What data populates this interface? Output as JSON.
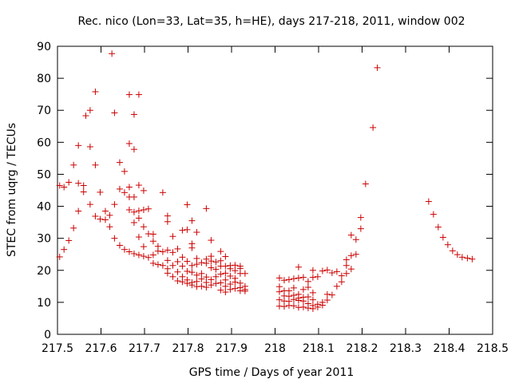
{
  "chart_data": {
    "type": "scatter",
    "title": "Rec. nico (Lon=33, Lat=35, h=HE), days 217-218, 2011, window 002",
    "xlabel": "GPS time / Days of year 2011",
    "ylabel": "STEC from uqrg / TECUs",
    "xlim": [
      217.5,
      218.5
    ],
    "ylim": [
      0,
      90
    ],
    "x_ticks": [
      "217.5",
      "217.6",
      "217.7",
      "217.8",
      "217.9",
      "218",
      "218.1",
      "218.2",
      "218.3",
      "218.4",
      "218.5"
    ],
    "y_ticks": [
      "0",
      "10",
      "20",
      "30",
      "40",
      "50",
      "60",
      "70",
      "80",
      "90"
    ],
    "grid": false,
    "marker": "+",
    "colors": {
      "marker": "#cc0000",
      "axis": "#000000",
      "background": "#ffffff"
    },
    "series": [
      {
        "points": [
          [
            217.505,
            24.2
          ],
          [
            217.505,
            46.5
          ],
          [
            217.515,
            26.5
          ],
          [
            217.515,
            46.0
          ],
          [
            217.526,
            29.3
          ],
          [
            217.526,
            47.5
          ],
          [
            217.537,
            33.2
          ],
          [
            217.537,
            52.9
          ],
          [
            217.548,
            38.5
          ],
          [
            217.548,
            47.2
          ],
          [
            217.548,
            59.0
          ],
          [
            217.56,
            44.5
          ],
          [
            217.56,
            46.5
          ],
          [
            217.565,
            68.3
          ],
          [
            217.575,
            40.6
          ],
          [
            217.575,
            58.6
          ],
          [
            217.575,
            70.0
          ],
          [
            217.587,
            36.9
          ],
          [
            217.587,
            52.9
          ],
          [
            217.587,
            75.8
          ],
          [
            217.598,
            36.0
          ],
          [
            217.598,
            44.4
          ],
          [
            217.61,
            35.8
          ],
          [
            217.61,
            38.5
          ],
          [
            217.62,
            33.6
          ],
          [
            217.62,
            37.2
          ],
          [
            217.625,
            87.7
          ],
          [
            217.631,
            30.0
          ],
          [
            217.631,
            40.6
          ],
          [
            217.631,
            69.2
          ],
          [
            217.643,
            27.8
          ],
          [
            217.643,
            45.4
          ],
          [
            217.643,
            53.7
          ],
          [
            217.654,
            26.5
          ],
          [
            217.654,
            44.3
          ],
          [
            217.654,
            50.9
          ],
          [
            217.665,
            25.8
          ],
          [
            217.665,
            38.9
          ],
          [
            217.665,
            42.9
          ],
          [
            217.665,
            46.0
          ],
          [
            217.665,
            59.6
          ],
          [
            217.665,
            74.9
          ],
          [
            217.676,
            25.2
          ],
          [
            217.676,
            34.9
          ],
          [
            217.676,
            38.2
          ],
          [
            217.676,
            42.9
          ],
          [
            217.676,
            57.8
          ],
          [
            217.676,
            68.7
          ],
          [
            217.687,
            24.8
          ],
          [
            217.687,
            30.4
          ],
          [
            217.687,
            36.3
          ],
          [
            217.687,
            38.6
          ],
          [
            217.687,
            46.6
          ],
          [
            217.687,
            74.9
          ],
          [
            217.698,
            24.4
          ],
          [
            217.698,
            27.4
          ],
          [
            217.698,
            33.6
          ],
          [
            217.698,
            38.9
          ],
          [
            217.698,
            44.9
          ],
          [
            217.709,
            24.0
          ],
          [
            217.709,
            31.4
          ],
          [
            217.709,
            39.2
          ],
          [
            217.72,
            22.2
          ],
          [
            217.72,
            24.8
          ],
          [
            217.72,
            29.1
          ],
          [
            217.72,
            31.3
          ],
          [
            217.731,
            21.8
          ],
          [
            217.731,
            26.0
          ],
          [
            217.731,
            27.5
          ],
          [
            217.742,
            21.5
          ],
          [
            217.742,
            25.8
          ],
          [
            217.742,
            44.3
          ],
          [
            217.753,
            19.1
          ],
          [
            217.753,
            20.5
          ],
          [
            217.753,
            23.1
          ],
          [
            217.753,
            26.3
          ],
          [
            217.753,
            35.2
          ],
          [
            217.753,
            37.0
          ],
          [
            217.765,
            18.0
          ],
          [
            217.765,
            21.5
          ],
          [
            217.765,
            25.6
          ],
          [
            217.765,
            30.6
          ],
          [
            217.776,
            16.7
          ],
          [
            217.776,
            19.5
          ],
          [
            217.776,
            22.7
          ],
          [
            217.776,
            26.7
          ],
          [
            217.787,
            16.4
          ],
          [
            217.787,
            18.0
          ],
          [
            217.787,
            21.3
          ],
          [
            217.787,
            24.1
          ],
          [
            217.787,
            32.5
          ],
          [
            217.798,
            15.9
          ],
          [
            217.798,
            17.0
          ],
          [
            217.798,
            19.7
          ],
          [
            217.798,
            22.8
          ],
          [
            217.798,
            32.7
          ],
          [
            217.798,
            40.5
          ],
          [
            217.809,
            15.4
          ],
          [
            217.809,
            16.2
          ],
          [
            217.809,
            19.4
          ],
          [
            217.809,
            21.5
          ],
          [
            217.809,
            27.0
          ],
          [
            217.809,
            28.3
          ],
          [
            217.809,
            35.5
          ],
          [
            217.82,
            14.9
          ],
          [
            217.82,
            16.5
          ],
          [
            217.82,
            18.5
          ],
          [
            217.82,
            21.9
          ],
          [
            217.82,
            23.7
          ],
          [
            217.82,
            31.9
          ],
          [
            217.831,
            15.0
          ],
          [
            217.831,
            17.3
          ],
          [
            217.831,
            19.0
          ],
          [
            217.831,
            22.4
          ],
          [
            217.842,
            14.7
          ],
          [
            217.842,
            16.2
          ],
          [
            217.842,
            17.9
          ],
          [
            217.842,
            22.2
          ],
          [
            217.842,
            23.5
          ],
          [
            217.842,
            39.3
          ],
          [
            217.853,
            15.4
          ],
          [
            217.853,
            17.1
          ],
          [
            217.853,
            20.8
          ],
          [
            217.853,
            22.9
          ],
          [
            217.853,
            24.4
          ],
          [
            217.853,
            29.4
          ],
          [
            217.864,
            15.9
          ],
          [
            217.864,
            18.0
          ],
          [
            217.864,
            20.3
          ],
          [
            217.864,
            22.6
          ],
          [
            217.875,
            13.8
          ],
          [
            217.875,
            16.1
          ],
          [
            217.875,
            18.8
          ],
          [
            217.875,
            21.3
          ],
          [
            217.875,
            23.0
          ],
          [
            217.875,
            25.9
          ],
          [
            217.886,
            13.2
          ],
          [
            217.886,
            15.0
          ],
          [
            217.886,
            17.0
          ],
          [
            217.886,
            19.1
          ],
          [
            217.886,
            21.3
          ],
          [
            217.886,
            24.3
          ],
          [
            217.897,
            14.0
          ],
          [
            217.897,
            15.7
          ],
          [
            217.897,
            18.2
          ],
          [
            217.897,
            20.5
          ],
          [
            217.897,
            21.5
          ],
          [
            217.908,
            14.3
          ],
          [
            217.908,
            16.3
          ],
          [
            217.908,
            17.5
          ],
          [
            217.908,
            19.9
          ],
          [
            217.908,
            21.6
          ],
          [
            217.92,
            13.6
          ],
          [
            217.92,
            14.6
          ],
          [
            217.92,
            16.0
          ],
          [
            217.92,
            19.0
          ],
          [
            217.92,
            20.6
          ],
          [
            217.92,
            21.3
          ],
          [
            217.931,
            15.0
          ],
          [
            217.931,
            14.0
          ],
          [
            217.931,
            13.5
          ],
          [
            217.931,
            19.0
          ],
          [
            218.01,
            8.8
          ],
          [
            218.01,
            10.8
          ],
          [
            218.01,
            13.3
          ],
          [
            218.01,
            14.9
          ],
          [
            218.01,
            17.6
          ],
          [
            218.021,
            8.7
          ],
          [
            218.021,
            10.4
          ],
          [
            218.021,
            12.0
          ],
          [
            218.021,
            13.6
          ],
          [
            218.021,
            16.9
          ],
          [
            218.032,
            9.0
          ],
          [
            218.032,
            10.3
          ],
          [
            218.032,
            11.9
          ],
          [
            218.032,
            13.6
          ],
          [
            218.032,
            17.1
          ],
          [
            218.043,
            8.9
          ],
          [
            218.043,
            10.9
          ],
          [
            218.043,
            12.2
          ],
          [
            218.043,
            14.5
          ],
          [
            218.043,
            17.4
          ],
          [
            218.054,
            8.4
          ],
          [
            218.054,
            10.6
          ],
          [
            218.054,
            11.3
          ],
          [
            218.054,
            12.5
          ],
          [
            218.054,
            17.6
          ],
          [
            218.054,
            21.0
          ],
          [
            218.065,
            8.5
          ],
          [
            218.065,
            10.4
          ],
          [
            218.065,
            11.6
          ],
          [
            218.065,
            14.0
          ],
          [
            218.065,
            17.8
          ],
          [
            218.076,
            8.2
          ],
          [
            218.076,
            9.6
          ],
          [
            218.076,
            11.7
          ],
          [
            218.076,
            14.7
          ],
          [
            218.076,
            16.5
          ],
          [
            218.087,
            8.0
          ],
          [
            218.087,
            9.0
          ],
          [
            218.087,
            10.8
          ],
          [
            218.087,
            13.0
          ],
          [
            218.087,
            17.8
          ],
          [
            218.087,
            20.0
          ],
          [
            218.098,
            8.5
          ],
          [
            218.098,
            9.4
          ],
          [
            218.098,
            18.0
          ],
          [
            218.109,
            9.1
          ],
          [
            218.109,
            10.0
          ],
          [
            218.109,
            19.8
          ],
          [
            218.12,
            10.7
          ],
          [
            218.12,
            12.5
          ],
          [
            218.12,
            20.1
          ],
          [
            218.131,
            12.3
          ],
          [
            218.131,
            19.2
          ],
          [
            218.142,
            15.0
          ],
          [
            218.142,
            19.6
          ],
          [
            218.153,
            16.4
          ],
          [
            218.153,
            18.3
          ],
          [
            218.164,
            19.0
          ],
          [
            218.164,
            21.5
          ],
          [
            218.164,
            23.3
          ],
          [
            218.175,
            20.4
          ],
          [
            218.175,
            24.6
          ],
          [
            218.175,
            31.0
          ],
          [
            218.186,
            25.0
          ],
          [
            218.186,
            29.6
          ],
          [
            218.197,
            33.0
          ],
          [
            218.197,
            36.5
          ],
          [
            218.208,
            47.0
          ],
          [
            218.225,
            64.6
          ],
          [
            218.235,
            83.3
          ],
          [
            218.353,
            41.5
          ],
          [
            218.364,
            37.5
          ],
          [
            218.375,
            33.5
          ],
          [
            218.386,
            30.3
          ],
          [
            218.397,
            28.0
          ],
          [
            218.408,
            26.1
          ],
          [
            218.419,
            24.9
          ],
          [
            218.43,
            24.1
          ],
          [
            218.442,
            23.8
          ],
          [
            218.453,
            23.5
          ]
        ]
      }
    ]
  }
}
